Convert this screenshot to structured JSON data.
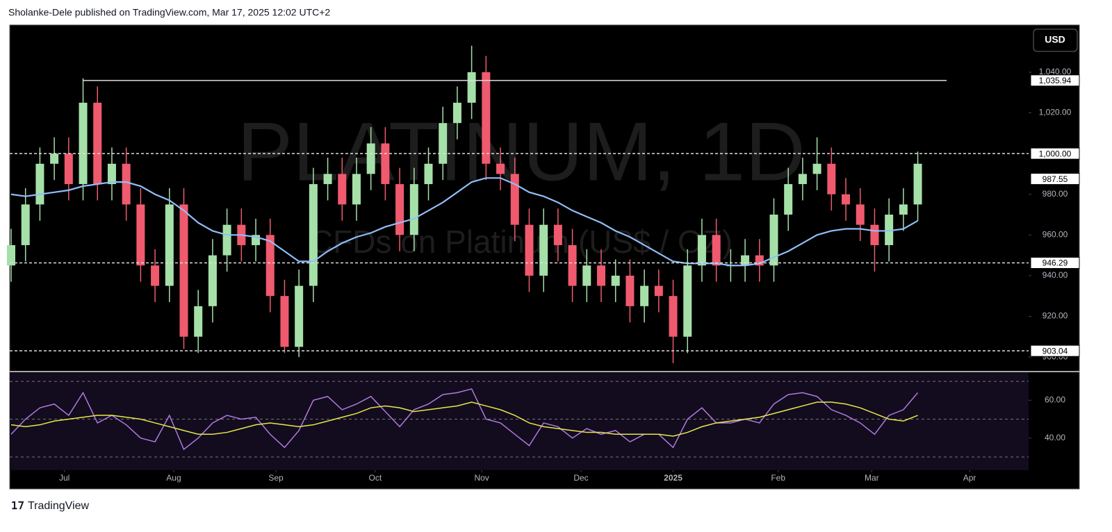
{
  "header": "Sholanke-Dele published on TradingView.com, Mar 17, 2025 12:02 UTC+2",
  "footer": "TradingView",
  "currency": "USD",
  "chart_data": [
    {
      "type": "candlestick",
      "watermark": "PLATINUM, 1D",
      "watermark_subtitle": "CFDs on Platinum (US$ / OZ)",
      "up_color": "#a5e0a8",
      "down_color": "#f05a6e",
      "open": [
        945,
        955,
        975,
        995,
        1000,
        985,
        1025,
        985,
        995,
        975,
        945,
        935,
        975,
        910,
        925,
        950,
        965,
        955,
        960,
        930,
        905,
        935,
        985,
        990,
        975,
        990,
        1005,
        985,
        960,
        985,
        995,
        1015,
        1025,
        1040,
        995,
        990,
        965,
        940,
        965,
        955,
        935,
        945,
        935,
        940,
        925,
        935,
        930,
        910,
        945,
        960,
        945,
        945,
        950,
        945,
        970,
        985,
        990,
        995,
        980,
        975,
        965,
        955,
        970,
        975
      ],
      "high": [
        963,
        983,
        1003,
        1008,
        1008,
        1037,
        1033,
        1003,
        1003,
        983,
        953,
        983,
        983,
        933,
        958,
        973,
        973,
        968,
        968,
        938,
        943,
        993,
        998,
        998,
        998,
        1013,
        1013,
        993,
        993,
        1003,
        1023,
        1033,
        1053,
        1048,
        1003,
        998,
        973,
        973,
        973,
        963,
        953,
        953,
        948,
        948,
        943,
        943,
        938,
        953,
        968,
        968,
        953,
        958,
        958,
        978,
        993,
        998,
        1008,
        1003,
        988,
        983,
        973,
        978,
        983,
        1001
      ],
      "low": [
        937,
        947,
        967,
        987,
        977,
        977,
        977,
        977,
        967,
        937,
        927,
        927,
        904,
        902,
        917,
        942,
        947,
        947,
        922,
        902,
        900,
        927,
        977,
        967,
        967,
        982,
        977,
        952,
        952,
        977,
        987,
        1007,
        1017,
        987,
        982,
        957,
        932,
        932,
        947,
        927,
        927,
        927,
        927,
        917,
        917,
        922,
        897,
        902,
        937,
        937,
        937,
        937,
        937,
        937,
        962,
        977,
        982,
        972,
        967,
        957,
        942,
        947,
        962,
        967
      ],
      "close": [
        955,
        975,
        995,
        1000,
        985,
        1025,
        985,
        995,
        975,
        945,
        935,
        975,
        910,
        925,
        950,
        965,
        955,
        960,
        930,
        905,
        935,
        985,
        990,
        975,
        990,
        1005,
        985,
        960,
        985,
        995,
        1015,
        1025,
        1040,
        995,
        990,
        965,
        940,
        965,
        955,
        935,
        945,
        935,
        940,
        925,
        935,
        930,
        910,
        945,
        960,
        945,
        945,
        950,
        945,
        970,
        985,
        990,
        995,
        980,
        975,
        965,
        955,
        970,
        975,
        995
      ],
      "ma": {
        "color": "#90bff9",
        "values": [
          980,
          979,
          980,
          981,
          982,
          984,
          985,
          986,
          986,
          984,
          980,
          977,
          972,
          966,
          962,
          960,
          960,
          959,
          957,
          952,
          947,
          947,
          952,
          956,
          959,
          961,
          964,
          966,
          968,
          972,
          976,
          981,
          986,
          988,
          988,
          985,
          981,
          979,
          976,
          972,
          969,
          966,
          962,
          959,
          955,
          951,
          947,
          946,
          946,
          946,
          945,
          945,
          946,
          949,
          952,
          956,
          960,
          962,
          963,
          963,
          962,
          962,
          963,
          967
        ]
      },
      "xlim": [
        0,
        70.7
      ],
      "ylim": [
        893.2,
        1063.2
      ],
      "yticks": [
        {
          "value": 1040,
          "label": "1,040.00"
        },
        {
          "value": 1020,
          "label": "1,020.00"
        },
        {
          "value": 980,
          "label": "980.00"
        },
        {
          "value": 960,
          "label": "960.00"
        },
        {
          "value": 940,
          "label": "940.00"
        },
        {
          "value": 920,
          "label": "920.00"
        },
        {
          "value": 900,
          "label": "900.00"
        }
      ],
      "levels": [
        {
          "value": 1035.94,
          "label": "1,035.94",
          "style": "solid",
          "x_range": [
            5,
            65
          ]
        },
        {
          "value": 1000,
          "label": "1,000.00",
          "style": "dashed"
        },
        {
          "value": 987.55,
          "label": "987.55",
          "style": "price"
        },
        {
          "value": 946.29,
          "label": "946.29",
          "style": "dashed"
        },
        {
          "value": 903.04,
          "label": "903.04",
          "style": "dashed"
        }
      ]
    },
    {
      "type": "line",
      "xlim": [
        0,
        70.7
      ],
      "ylim": [
        23,
        74.8
      ],
      "series": [
        {
          "color": "#b07ae0",
          "values": [
            42,
            50,
            56,
            58,
            52,
            64,
            48,
            52,
            47,
            40,
            38,
            52,
            34,
            40,
            48,
            52,
            50,
            51,
            42,
            35,
            44,
            60,
            62,
            55,
            58,
            62,
            54,
            46,
            55,
            58,
            63,
            64,
            66,
            50,
            48,
            42,
            36,
            48,
            46,
            40,
            45,
            42,
            44,
            38,
            42,
            42,
            35,
            50,
            56,
            48,
            48,
            50,
            48,
            58,
            63,
            64,
            62,
            55,
            52,
            48,
            42,
            52,
            55,
            64
          ]
        },
        {
          "color": "#e8e84a",
          "values": [
            47,
            46,
            47,
            49,
            50,
            51,
            52,
            52,
            51,
            50,
            48,
            46,
            44,
            42,
            42,
            43,
            45,
            47,
            48,
            47,
            46,
            47,
            49,
            51,
            53,
            56,
            57,
            56,
            54,
            55,
            56,
            57,
            59,
            57,
            55,
            52,
            48,
            46,
            45,
            44,
            43,
            43,
            42,
            42,
            42,
            42,
            41,
            43,
            46,
            48,
            49,
            50,
            51,
            53,
            55,
            57,
            59,
            59,
            58,
            56,
            53,
            50,
            49,
            52
          ]
        }
      ],
      "levels": [
        70,
        50,
        30
      ],
      "yticks": [
        {
          "value": 60,
          "label": "60.00"
        },
        {
          "value": 40,
          "label": "40.00"
        }
      ],
      "xticks": [
        {
          "value": 3.7,
          "label": "Jul"
        },
        {
          "value": 11.3,
          "label": "Aug"
        },
        {
          "value": 18.4,
          "label": "Sep"
        },
        {
          "value": 25.3,
          "label": "Oct"
        },
        {
          "value": 32.7,
          "label": "Nov"
        },
        {
          "value": 39.6,
          "label": "Dec"
        },
        {
          "value": 46,
          "label": "2025"
        },
        {
          "value": 53.3,
          "label": "Feb"
        },
        {
          "value": 59.8,
          "label": "Mar"
        },
        {
          "value": 66.6,
          "label": "Apr"
        }
      ]
    }
  ]
}
